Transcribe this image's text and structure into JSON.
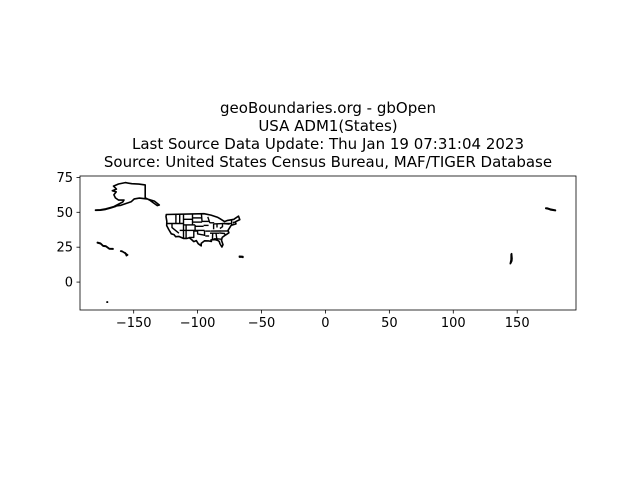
{
  "title_lines": [
    "geoBoundaries.org - gbOpen",
    "USA ADM1(States)",
    "Last Source Data Update: Thu Jan 19 07:31:04 2023",
    "Source: United States Census Bureau, MAF/TIGER Database"
  ],
  "chart_data": {
    "type": "map",
    "xlim": [
      -192,
      196
    ],
    "ylim": [
      -20,
      76
    ],
    "x_ticks": [
      -150,
      -100,
      -50,
      0,
      50,
      100,
      150
    ],
    "x_tick_labels": [
      "−150",
      "−100",
      "−50",
      "0",
      "50",
      "100",
      "150"
    ],
    "y_ticks": [
      0,
      25,
      50,
      75
    ],
    "y_tick_labels": [
      "0",
      "25",
      "50",
      "75"
    ],
    "grid": false,
    "line_color": "#000000",
    "regions": [
      {
        "name": "Contiguous US",
        "points": [
          [
            -124.5,
            48.4
          ],
          [
            -95.0,
            49.0
          ],
          [
            -89.5,
            48.0
          ],
          [
            -84.5,
            46.5
          ],
          [
            -82.5,
            45.4
          ],
          [
            -79.0,
            43.3
          ],
          [
            -76.5,
            44.2
          ],
          [
            -71.5,
            45.0
          ],
          [
            -70.5,
            45.7
          ],
          [
            -68.0,
            47.3
          ],
          [
            -67.0,
            44.8
          ],
          [
            -70.5,
            43.2
          ],
          [
            -70.0,
            41.7
          ],
          [
            -73.8,
            40.6
          ],
          [
            -75.0,
            38.9
          ],
          [
            -76.2,
            37.0
          ],
          [
            -75.5,
            35.3
          ],
          [
            -78.0,
            33.8
          ],
          [
            -80.8,
            32.0
          ],
          [
            -81.3,
            30.0
          ],
          [
            -80.1,
            26.8
          ],
          [
            -81.0,
            25.1
          ],
          [
            -82.6,
            27.6
          ],
          [
            -83.0,
            29.1
          ],
          [
            -84.4,
            29.9
          ],
          [
            -86.5,
            30.4
          ],
          [
            -89.5,
            30.2
          ],
          [
            -89.2,
            29.1
          ],
          [
            -91.5,
            29.5
          ],
          [
            -94.5,
            29.6
          ],
          [
            -97.2,
            27.7
          ],
          [
            -97.2,
            25.9
          ],
          [
            -99.5,
            27.5
          ],
          [
            -101.0,
            29.7
          ],
          [
            -103.0,
            29.0
          ],
          [
            -104.8,
            30.5
          ],
          [
            -106.5,
            31.8
          ],
          [
            -108.2,
            31.3
          ],
          [
            -111.1,
            31.3
          ],
          [
            -114.7,
            32.7
          ],
          [
            -117.1,
            32.5
          ],
          [
            -118.5,
            34.0
          ],
          [
            -120.6,
            34.6
          ],
          [
            -122.5,
            37.6
          ],
          [
            -124.2,
            40.5
          ],
          [
            -124.1,
            43.7
          ],
          [
            -124.7,
            46.9
          ]
        ]
      },
      {
        "name": "Alaska",
        "points": [
          [
            -141.0,
            69.6
          ],
          [
            -141.0,
            60.3
          ],
          [
            -137.5,
            58.7
          ],
          [
            -135.0,
            57.0
          ],
          [
            -131.5,
            54.8
          ],
          [
            -130.0,
            55.2
          ],
          [
            -133.8,
            58.0
          ],
          [
            -139.7,
            59.6
          ],
          [
            -145.5,
            60.2
          ],
          [
            -149.5,
            59.6
          ],
          [
            -152.0,
            57.5
          ],
          [
            -156.0,
            56.3
          ],
          [
            -160.0,
            55.0
          ],
          [
            -164.8,
            54.4
          ],
          [
            -162.0,
            55.8
          ],
          [
            -158.5,
            57.4
          ],
          [
            -157.6,
            58.8
          ],
          [
            -161.8,
            58.7
          ],
          [
            -164.3,
            60.3
          ],
          [
            -165.5,
            62.5
          ],
          [
            -163.7,
            64.6
          ],
          [
            -166.7,
            65.5
          ],
          [
            -163.5,
            66.6
          ],
          [
            -165.8,
            68.8
          ],
          [
            -161.9,
            70.3
          ],
          [
            -156.6,
            71.3
          ],
          [
            -151.5,
            70.5
          ],
          [
            -146.0,
            70.2
          ]
        ]
      },
      {
        "name": "Aleutian chain",
        "points": [
          [
            -164.0,
            54.5
          ],
          [
            -168.0,
            53.4
          ],
          [
            -172.0,
            52.4
          ],
          [
            -176.0,
            51.8
          ],
          [
            -179.9,
            51.6
          ],
          [
            -179.9,
            51.4
          ],
          [
            -176.0,
            51.5
          ],
          [
            -172.0,
            52.1
          ],
          [
            -168.0,
            53.1
          ],
          [
            -164.0,
            54.2
          ]
        ]
      },
      {
        "name": "Hawaii",
        "points": [
          [
            -160.2,
            22.2
          ],
          [
            -159.3,
            22.2
          ],
          [
            -157.7,
            21.3
          ],
          [
            -156.7,
            21.0
          ],
          [
            -155.8,
            20.1
          ],
          [
            -154.8,
            19.5
          ],
          [
            -155.7,
            18.9
          ],
          [
            -156.0,
            19.8
          ],
          [
            -157.0,
            20.9
          ],
          [
            -158.2,
            21.6
          ]
        ]
      },
      {
        "name": "Puerto Rico & USVI",
        "points": [
          [
            -67.3,
            18.5
          ],
          [
            -65.6,
            18.4
          ],
          [
            -64.6,
            18.3
          ],
          [
            -64.6,
            17.7
          ],
          [
            -65.7,
            18.0
          ],
          [
            -67.2,
            17.9
          ]
        ]
      },
      {
        "name": "Guam & N. Mariana Is.",
        "points": [
          [
            144.6,
            13.2
          ],
          [
            145.0,
            13.7
          ],
          [
            145.8,
            15.2
          ],
          [
            145.9,
            17.0
          ],
          [
            145.6,
            20.3
          ],
          [
            145.3,
            20.0
          ],
          [
            145.2,
            16.0
          ],
          [
            144.8,
            14.0
          ]
        ]
      },
      {
        "name": "Western Aleutians",
        "points": [
          [
            172.4,
            53.0
          ],
          [
            173.9,
            52.9
          ],
          [
            176.0,
            52.3
          ],
          [
            179.9,
            51.6
          ],
          [
            179.9,
            51.2
          ],
          [
            176.0,
            51.8
          ],
          [
            173.9,
            52.5
          ],
          [
            172.4,
            52.7
          ]
        ]
      },
      {
        "name": "American Samoa",
        "points": [
          [
            -170.9,
            -14.2
          ],
          [
            -170.5,
            -14.2
          ],
          [
            -170.5,
            -14.4
          ],
          [
            -170.9,
            -14.4
          ]
        ]
      },
      {
        "name": "NW Hawaiian Is.",
        "points": [
          [
            -178.4,
            28.4
          ],
          [
            -175.9,
            27.8
          ],
          [
            -173.9,
            26.1
          ],
          [
            -171.7,
            25.8
          ],
          [
            -169.0,
            24.0
          ],
          [
            -166.2,
            23.9
          ],
          [
            -166.2,
            23.6
          ],
          [
            -169.0,
            23.7
          ],
          [
            -171.7,
            25.5
          ],
          [
            -173.9,
            25.8
          ],
          [
            -175.9,
            27.5
          ],
          [
            -178.4,
            28.1
          ]
        ]
      }
    ],
    "internal_borders": [
      [
        [
          -117.0,
          49.0
        ],
        [
          -117.0,
          42.0
        ]
      ],
      [
        [
          -124.2,
          42.0
        ],
        [
          -111.0,
          42.0
        ]
      ],
      [
        [
          -120.0,
          42.0
        ],
        [
          -120.0,
          39.0
        ],
        [
          -114.6,
          35.0
        ]
      ],
      [
        [
          -114.0,
          49.0
        ],
        [
          -114.0,
          42.0
        ]
      ],
      [
        [
          -111.0,
          49.0
        ],
        [
          -111.0,
          31.3
        ]
      ],
      [
        [
          -114.0,
          37.0
        ],
        [
          -102.0,
          37.0
        ]
      ],
      [
        [
          -104.0,
          49.0
        ],
        [
          -104.0,
          41.0
        ]
      ],
      [
        [
          -111.0,
          45.0
        ],
        [
          -104.0,
          45.0
        ]
      ],
      [
        [
          -111.0,
          41.0
        ],
        [
          -102.0,
          41.0
        ]
      ],
      [
        [
          -109.0,
          41.0
        ],
        [
          -109.0,
          31.3
        ]
      ],
      [
        [
          -102.0,
          41.0
        ],
        [
          -102.0,
          37.0
        ]
      ],
      [
        [
          -103.0,
          37.0
        ],
        [
          -103.0,
          32.0
        ],
        [
          -106.5,
          32.0
        ]
      ],
      [
        [
          -104.0,
          46.0
        ],
        [
          -96.5,
          46.0
        ]
      ],
      [
        [
          -104.0,
          43.0
        ],
        [
          -96.5,
          43.0
        ]
      ],
      [
        [
          -102.0,
          40.0
        ],
        [
          -95.3,
          40.0
        ]
      ],
      [
        [
          -102.0,
          37.0
        ],
        [
          -94.6,
          37.0
        ]
      ],
      [
        [
          -103.0,
          36.5
        ],
        [
          -100.0,
          36.5
        ],
        [
          -100.0,
          34.5
        ],
        [
          -94.5,
          33.6
        ]
      ],
      [
        [
          -97.0,
          49.0
        ],
        [
          -96.5,
          43.0
        ]
      ],
      [
        [
          -96.5,
          43.5
        ],
        [
          -91.2,
          43.5
        ]
      ],
      [
        [
          -95.3,
          40.6
        ],
        [
          -91.4,
          40.6
        ]
      ],
      [
        [
          -94.6,
          37.0
        ],
        [
          -94.5,
          33.0
        ]
      ],
      [
        [
          -94.0,
          36.5
        ],
        [
          -89.7,
          36.5
        ]
      ],
      [
        [
          -94.0,
          33.0
        ],
        [
          -91.0,
          33.0
        ]
      ],
      [
        [
          -92.0,
          46.7
        ],
        [
          -90.5,
          42.5
        ]
      ],
      [
        [
          -90.6,
          42.5
        ],
        [
          -87.0,
          42.5
        ]
      ],
      [
        [
          -87.5,
          41.7
        ],
        [
          -87.5,
          37.8
        ]
      ],
      [
        [
          -84.8,
          41.7
        ],
        [
          -84.8,
          39.1
        ]
      ],
      [
        [
          -87.5,
          41.7
        ],
        [
          -80.5,
          41.9
        ]
      ],
      [
        [
          -89.5,
          36.5
        ],
        [
          -81.7,
          36.6
        ]
      ],
      [
        [
          -90.3,
          35.0
        ],
        [
          -83.1,
          35.0
        ]
      ],
      [
        [
          -88.2,
          35.0
        ],
        [
          -88.4,
          30.4
        ]
      ],
      [
        [
          -85.6,
          35.0
        ],
        [
          -85.0,
          31.0
        ],
        [
          -87.6,
          31.0
        ]
      ],
      [
        [
          -85.0,
          31.0
        ],
        [
          -81.5,
          30.7
        ]
      ],
      [
        [
          -83.1,
          35.2
        ],
        [
          -79.0,
          34.8
        ],
        [
          -78.6,
          33.9
        ]
      ],
      [
        [
          -82.6,
          38.4
        ],
        [
          -80.5,
          39.7
        ],
        [
          -80.5,
          42.0
        ]
      ],
      [
        [
          -81.7,
          36.6
        ],
        [
          -75.9,
          36.6
        ]
      ],
      [
        [
          -80.5,
          42.0
        ],
        [
          -79.8,
          42.0
        ],
        [
          -75.0,
          41.5
        ]
      ],
      [
        [
          -79.5,
          42.0
        ],
        [
          -75.0,
          42.0
        ],
        [
          -73.5,
          42.0
        ]
      ],
      [
        [
          -73.5,
          45.0
        ],
        [
          -73.3,
          41.0
        ]
      ],
      [
        [
          -71.8,
          42.0
        ],
        [
          -71.8,
          41.3
        ]
      ],
      [
        [
          -72.5,
          42.7
        ],
        [
          -70.8,
          42.9
        ]
      ]
    ]
  }
}
